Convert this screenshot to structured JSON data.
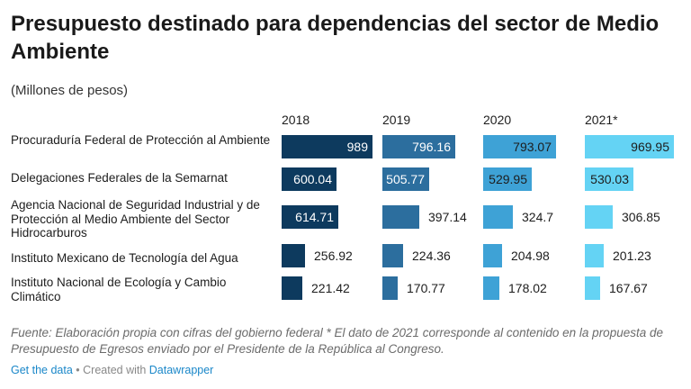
{
  "title": "Presupuesto destinado para dependencias del sector de Medio Ambiente",
  "subtitle": "(Millones de pesos)",
  "notes": "Fuente: Elaboración propia con cifras del gobierno federal * El dato de 2021 corresponde al contenido en la propuesta de Presupuesto de Egresos enviado por el Presidente de la República al Congreso.",
  "footer": {
    "get_data": "Get the data",
    "separator": " • Created with ",
    "brand": "Datawrapper"
  },
  "chart_data": {
    "type": "bar",
    "columns": [
      "2018",
      "2019",
      "2020",
      "2021*"
    ],
    "column_colors": [
      "#0d3a5e",
      "#2c6e9e",
      "#3ea2d6",
      "#64d3f4"
    ],
    "categories": [
      "Procuraduría Federal de Protección al Ambiente",
      "Delegaciones Federales de la Semarnat",
      "Agencia Nacional de Seguridad Industrial y de Protección al Medio Ambiente del Sector Hidrocarburos",
      "Instituto Mexicano de Tecnología del Agua",
      "Instituto Nacional de Ecología y Cambio Climático"
    ],
    "values": [
      [
        989,
        796.16,
        793.07,
        969.95
      ],
      [
        600.04,
        505.77,
        529.95,
        530.03
      ],
      [
        614.71,
        397.14,
        324.7,
        306.85
      ],
      [
        256.92,
        224.36,
        204.98,
        201.23
      ],
      [
        221.42,
        170.77,
        178.02,
        167.67
      ]
    ],
    "value_labels": [
      [
        "989",
        "796.16",
        "793.07",
        "969.95"
      ],
      [
        "600.04",
        "505.77",
        "529.95",
        "530.03"
      ],
      [
        "614.71",
        "397.14",
        "324.7",
        "306.85"
      ],
      [
        "256.92",
        "224.36",
        "204.98",
        "201.23"
      ],
      [
        "221.42",
        "170.77",
        "178.02",
        "167.67"
      ]
    ],
    "xlim": [
      0,
      989
    ]
  }
}
